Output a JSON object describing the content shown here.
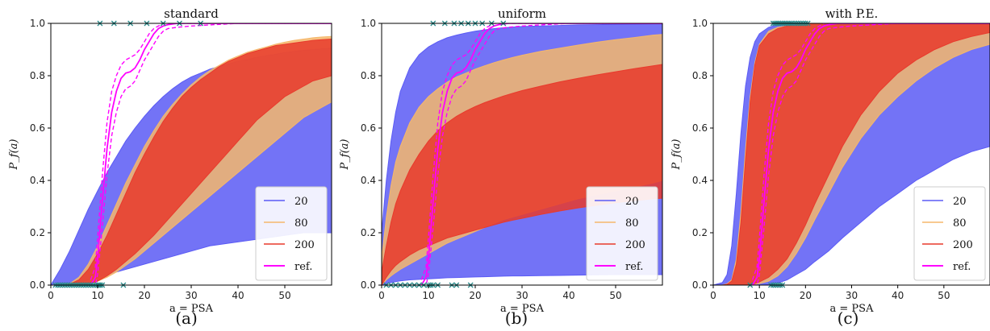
{
  "figure": {
    "captions": [
      "(a)",
      "(b)",
      "(c)"
    ]
  },
  "chart_data": [
    {
      "type": "area",
      "title": "standard",
      "xlabel": "a = PSA",
      "ylabel": "P_f(a)",
      "xlim": [
        0,
        60
      ],
      "ylim": [
        0,
        1
      ],
      "xticks": [
        0,
        10,
        20,
        30,
        40,
        50
      ],
      "yticks": [
        0.0,
        0.2,
        0.4,
        0.6,
        0.8,
        1.0
      ],
      "legend_position": "lower-right",
      "x": [
        0,
        2,
        4,
        6,
        8,
        10,
        12,
        14,
        16,
        18,
        20,
        22,
        24,
        26,
        28,
        30,
        32,
        34,
        36,
        38,
        40,
        42,
        44,
        46,
        48,
        50,
        52,
        54,
        56,
        58,
        60
      ],
      "series": [
        {
          "name": "20",
          "color": "#5b5bf5",
          "lower": [
            0,
            0,
            0.005,
            0.01,
            0.02,
            0.03,
            0.04,
            0.05,
            0.06,
            0.07,
            0.08,
            0.09,
            0.1,
            0.11,
            0.12,
            0.13,
            0.14,
            0.15,
            0.155,
            0.16,
            0.165,
            0.17,
            0.175,
            0.18,
            0.185,
            0.19,
            0.195,
            0.2,
            0.2,
            0.2,
            0.2
          ],
          "upper": [
            0,
            0.06,
            0.13,
            0.21,
            0.29,
            0.36,
            0.43,
            0.49,
            0.55,
            0.6,
            0.645,
            0.685,
            0.72,
            0.75,
            0.775,
            0.795,
            0.81,
            0.825,
            0.835,
            0.845,
            0.855,
            0.862,
            0.87,
            0.876,
            0.882,
            0.888,
            0.893,
            0.897,
            0.9,
            0.903,
            0.905
          ]
        },
        {
          "name": "80",
          "color": "#f5b76b",
          "lower": [
            0,
            0,
            0,
            0,
            0.005,
            0.015,
            0.03,
            0.05,
            0.075,
            0.1,
            0.13,
            0.16,
            0.19,
            0.22,
            0.25,
            0.28,
            0.31,
            0.34,
            0.37,
            0.4,
            0.43,
            0.46,
            0.49,
            0.52,
            0.55,
            0.58,
            0.61,
            0.64,
            0.66,
            0.68,
            0.7
          ],
          "upper": [
            0,
            0,
            0.005,
            0.03,
            0.08,
            0.15,
            0.23,
            0.31,
            0.39,
            0.46,
            0.53,
            0.59,
            0.645,
            0.69,
            0.73,
            0.765,
            0.795,
            0.82,
            0.84,
            0.86,
            0.875,
            0.89,
            0.9,
            0.91,
            0.92,
            0.928,
            0.935,
            0.94,
            0.945,
            0.948,
            0.95
          ]
        },
        {
          "name": "200",
          "color": "#e83a2c",
          "lower": [
            0,
            0,
            0,
            0,
            0.005,
            0.015,
            0.035,
            0.06,
            0.09,
            0.12,
            0.155,
            0.19,
            0.23,
            0.27,
            0.31,
            0.35,
            0.39,
            0.43,
            0.47,
            0.51,
            0.55,
            0.59,
            0.63,
            0.66,
            0.69,
            0.72,
            0.74,
            0.76,
            0.78,
            0.79,
            0.8
          ],
          "upper": [
            0,
            0,
            0.003,
            0.02,
            0.06,
            0.12,
            0.19,
            0.27,
            0.35,
            0.43,
            0.5,
            0.565,
            0.625,
            0.675,
            0.72,
            0.755,
            0.785,
            0.81,
            0.835,
            0.855,
            0.87,
            0.885,
            0.895,
            0.905,
            0.915,
            0.92,
            0.925,
            0.93,
            0.935,
            0.938,
            0.94
          ]
        }
      ],
      "reference": {
        "name": "ref.",
        "color": "#ff00ff",
        "x": [
          8.5,
          9.5,
          10,
          11,
          12,
          13,
          14,
          15,
          16,
          17,
          18,
          19,
          20,
          21,
          22,
          23,
          24,
          25,
          27,
          30,
          35,
          40,
          60
        ],
        "y": [
          0,
          0.03,
          0.1,
          0.32,
          0.52,
          0.66,
          0.74,
          0.79,
          0.81,
          0.815,
          0.83,
          0.86,
          0.9,
          0.93,
          0.96,
          0.98,
          0.99,
          0.995,
          1.0,
          1.0,
          1.0,
          1.0,
          1.0
        ],
        "lower": [
          0,
          0.0,
          0.04,
          0.22,
          0.42,
          0.57,
          0.66,
          0.72,
          0.75,
          0.76,
          0.78,
          0.82,
          0.86,
          0.89,
          0.92,
          0.95,
          0.97,
          0.98,
          0.985,
          0.99,
          0.995,
          1.0,
          1.0
        ],
        "upper": [
          0.02,
          0.07,
          0.18,
          0.42,
          0.62,
          0.74,
          0.8,
          0.84,
          0.86,
          0.87,
          0.88,
          0.9,
          0.93,
          0.96,
          0.98,
          0.99,
          1.0,
          1.0,
          1.0,
          1.0,
          1.0,
          1.0,
          1.0
        ]
      },
      "markers": {
        "color": "#2a8a8a",
        "top": [
          10.5,
          13.5,
          17,
          20.5,
          24,
          27.5,
          32
        ],
        "bottom": [
          1,
          1.5,
          2,
          2.5,
          3,
          3.5,
          4,
          4.5,
          5,
          5.5,
          6,
          6.5,
          7,
          7.5,
          8,
          8.5,
          9,
          9.5,
          10,
          10.3,
          10.6,
          11,
          15.5
        ]
      }
    },
    {
      "type": "area",
      "title": "uniform",
      "xlabel": "a = PSA",
      "ylabel": "P_f(a)",
      "xlim": [
        0,
        60
      ],
      "ylim": [
        0,
        1
      ],
      "xticks": [
        0,
        10,
        20,
        30,
        40,
        50
      ],
      "yticks": [
        0.0,
        0.2,
        0.4,
        0.6,
        0.8,
        1.0
      ],
      "legend_position": "lower-right",
      "x": [
        0,
        1,
        2,
        3,
        4,
        6,
        8,
        10,
        12,
        14,
        16,
        18,
        20,
        22,
        24,
        26,
        28,
        30,
        34,
        38,
        42,
        46,
        50,
        54,
        58,
        60
      ],
      "series": [
        {
          "name": "20",
          "color": "#5b5bf5",
          "lower": [
            0,
            0.005,
            0.01,
            0.013,
            0.016,
            0.02,
            0.022,
            0.024,
            0.026,
            0.028,
            0.029,
            0.03,
            0.031,
            0.032,
            0.033,
            0.034,
            0.035,
            0.035,
            0.036,
            0.037,
            0.038,
            0.039,
            0.04,
            0.04,
            0.04,
            0.04
          ],
          "upper": [
            0.2,
            0.4,
            0.55,
            0.66,
            0.74,
            0.83,
            0.88,
            0.91,
            0.93,
            0.945,
            0.955,
            0.963,
            0.97,
            0.975,
            0.98,
            0.983,
            0.986,
            0.988,
            0.99,
            0.992,
            0.994,
            0.995,
            0.996,
            0.997,
            0.998,
            0.998
          ]
        },
        {
          "name": "80",
          "color": "#f5b76b",
          "lower": [
            0,
            0.02,
            0.035,
            0.048,
            0.06,
            0.08,
            0.1,
            0.12,
            0.14,
            0.16,
            0.175,
            0.19,
            0.205,
            0.22,
            0.235,
            0.25,
            0.26,
            0.27,
            0.29,
            0.31,
            0.33,
            0.345,
            0.36,
            0.375,
            0.39,
            0.4
          ],
          "upper": [
            0.1,
            0.26,
            0.38,
            0.47,
            0.53,
            0.62,
            0.68,
            0.72,
            0.75,
            0.775,
            0.795,
            0.81,
            0.825,
            0.838,
            0.85,
            0.86,
            0.87,
            0.878,
            0.893,
            0.905,
            0.917,
            0.928,
            0.938,
            0.946,
            0.955,
            0.958
          ]
        },
        {
          "name": "200",
          "color": "#e83a2c",
          "lower": [
            0,
            0.03,
            0.055,
            0.075,
            0.09,
            0.115,
            0.135,
            0.15,
            0.165,
            0.18,
            0.19,
            0.2,
            0.21,
            0.22,
            0.23,
            0.24,
            0.248,
            0.255,
            0.27,
            0.283,
            0.295,
            0.305,
            0.315,
            0.322,
            0.33,
            0.332
          ],
          "upper": [
            0.05,
            0.15,
            0.24,
            0.31,
            0.36,
            0.44,
            0.5,
            0.55,
            0.59,
            0.62,
            0.645,
            0.665,
            0.682,
            0.697,
            0.71,
            0.722,
            0.733,
            0.743,
            0.76,
            0.776,
            0.79,
            0.803,
            0.815,
            0.827,
            0.838,
            0.843
          ]
        }
      ],
      "reference": {
        "name": "ref.",
        "color": "#ff00ff",
        "x": [
          8.5,
          9.5,
          10,
          11,
          12,
          13,
          14,
          15,
          16,
          17,
          18,
          19,
          20,
          21,
          22,
          23,
          24,
          25,
          27,
          30,
          35,
          40,
          60
        ],
        "y": [
          0,
          0.03,
          0.1,
          0.32,
          0.52,
          0.66,
          0.74,
          0.79,
          0.81,
          0.815,
          0.83,
          0.86,
          0.9,
          0.93,
          0.96,
          0.98,
          0.99,
          0.995,
          1.0,
          1.0,
          1.0,
          1.0,
          1.0
        ],
        "lower": [
          0,
          0.0,
          0.04,
          0.22,
          0.42,
          0.57,
          0.66,
          0.72,
          0.75,
          0.76,
          0.78,
          0.82,
          0.86,
          0.89,
          0.92,
          0.95,
          0.97,
          0.98,
          0.985,
          0.99,
          0.995,
          1.0,
          1.0
        ],
        "upper": [
          0.02,
          0.07,
          0.18,
          0.42,
          0.62,
          0.74,
          0.8,
          0.84,
          0.86,
          0.87,
          0.88,
          0.9,
          0.93,
          0.96,
          0.98,
          0.99,
          1.0,
          1.0,
          1.0,
          1.0,
          1.0,
          1.0,
          1.0
        ]
      },
      "markers": {
        "color": "#2a8a8a",
        "top": [
          11,
          13.5,
          15.5,
          17,
          18.5,
          20,
          21.5,
          23.5,
          26
        ],
        "bottom": [
          1,
          2,
          3,
          4,
          5,
          6,
          7,
          8,
          9,
          10,
          10.5,
          11,
          12,
          15,
          16,
          19
        ]
      }
    },
    {
      "type": "area",
      "title": "with P.E.",
      "xlabel": "a = PSA",
      "ylabel": "P_f(a)",
      "xlim": [
        0,
        60
      ],
      "ylim": [
        0,
        1
      ],
      "xticks": [
        0,
        10,
        20,
        30,
        40,
        50
      ],
      "yticks": [
        0.0,
        0.2,
        0.4,
        0.6,
        0.8,
        1.0
      ],
      "legend_position": "lower-right",
      "x": [
        0,
        2,
        3,
        4,
        5,
        6,
        7,
        8,
        9,
        10,
        12,
        14,
        16,
        18,
        20,
        22,
        25,
        28,
        32,
        36,
        40,
        44,
        48,
        52,
        56,
        60
      ],
      "series": [
        {
          "name": "20",
          "color": "#5b5bf5",
          "lower": [
            0,
            0,
            0,
            0,
            0,
            0,
            0,
            0,
            0,
            0,
            0.002,
            0.008,
            0.02,
            0.04,
            0.06,
            0.09,
            0.13,
            0.18,
            0.24,
            0.3,
            0.35,
            0.4,
            0.44,
            0.48,
            0.51,
            0.53
          ],
          "upper": [
            0,
            0.01,
            0.04,
            0.15,
            0.35,
            0.58,
            0.76,
            0.87,
            0.93,
            0.96,
            0.985,
            0.995,
            1.0,
            1.0,
            1.0,
            1.0,
            1.0,
            1.0,
            1.0,
            1.0,
            1.0,
            1.0,
            1.0,
            1.0,
            1.0,
            1.0
          ]
        },
        {
          "name": "80",
          "color": "#f5b76b",
          "lower": [
            0,
            0,
            0,
            0,
            0,
            0,
            0,
            0,
            0.003,
            0.006,
            0.015,
            0.035,
            0.07,
            0.12,
            0.18,
            0.25,
            0.35,
            0.45,
            0.56,
            0.65,
            0.72,
            0.78,
            0.83,
            0.87,
            0.9,
            0.92
          ],
          "upper": [
            0,
            0,
            0.005,
            0.02,
            0.1,
            0.28,
            0.52,
            0.72,
            0.85,
            0.92,
            0.97,
            0.985,
            0.99,
            0.995,
            1.0,
            1.0,
            1.0,
            1.0,
            1.0,
            1.0,
            1.0,
            1.0,
            1.0,
            1.0,
            1.0,
            1.0
          ]
        },
        {
          "name": "200",
          "color": "#e83a2c",
          "lower": [
            0,
            0,
            0,
            0,
            0,
            0,
            0,
            0.002,
            0.006,
            0.012,
            0.03,
            0.06,
            0.1,
            0.16,
            0.23,
            0.31,
            0.42,
            0.53,
            0.65,
            0.74,
            0.81,
            0.86,
            0.9,
            0.93,
            0.95,
            0.965
          ],
          "upper": [
            0,
            0,
            0.003,
            0.015,
            0.08,
            0.24,
            0.48,
            0.7,
            0.84,
            0.915,
            0.96,
            0.98,
            0.99,
            0.995,
            1.0,
            1.0,
            1.0,
            1.0,
            1.0,
            1.0,
            1.0,
            1.0,
            1.0,
            1.0,
            1.0,
            1.0
          ]
        }
      ],
      "reference": {
        "name": "ref.",
        "color": "#ff00ff",
        "x": [
          8.5,
          9.5,
          10,
          11,
          12,
          13,
          14,
          15,
          16,
          17,
          18,
          19,
          20,
          21,
          22,
          23,
          24,
          25,
          27,
          30,
          35,
          40,
          60
        ],
        "y": [
          0,
          0.03,
          0.1,
          0.32,
          0.52,
          0.66,
          0.74,
          0.79,
          0.81,
          0.815,
          0.83,
          0.86,
          0.9,
          0.93,
          0.96,
          0.98,
          0.99,
          0.995,
          1.0,
          1.0,
          1.0,
          1.0,
          1.0
        ],
        "lower": [
          0,
          0.0,
          0.04,
          0.22,
          0.42,
          0.57,
          0.66,
          0.72,
          0.75,
          0.76,
          0.78,
          0.82,
          0.86,
          0.89,
          0.92,
          0.95,
          0.97,
          0.98,
          0.985,
          0.99,
          0.995,
          1.0,
          1.0
        ],
        "upper": [
          0.02,
          0.07,
          0.18,
          0.42,
          0.62,
          0.74,
          0.8,
          0.84,
          0.86,
          0.87,
          0.88,
          0.9,
          0.93,
          0.96,
          0.98,
          0.99,
          1.0,
          1.0,
          1.0,
          1.0,
          1.0,
          1.0,
          1.0
        ]
      },
      "markers": {
        "color": "#2a8a8a",
        "top": [
          13,
          13.4,
          13.8,
          14.2,
          14.6,
          15,
          15.4,
          15.8,
          16.2,
          16.6,
          17,
          17.5,
          18,
          18.5,
          19,
          19.5,
          20,
          20.5
        ],
        "bottom": [
          8,
          12.5,
          13,
          13.5,
          14,
          14.5,
          15
        ]
      }
    }
  ]
}
